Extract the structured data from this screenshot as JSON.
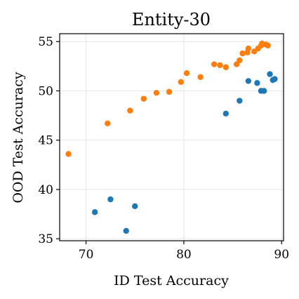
{
  "chart_data": {
    "type": "scatter",
    "title": "Entity-30",
    "xlabel": "ID Test Accuracy",
    "ylabel": "OOD Test Accuracy",
    "xlim": [
      67.3,
      90.2
    ],
    "ylim": [
      34.8,
      55.8
    ],
    "xticks": [
      70,
      80,
      90
    ],
    "yticks": [
      35,
      40,
      45,
      50,
      55
    ],
    "grid": true,
    "series": [
      {
        "color": "#1f77b4",
        "points": [
          {
            "x": 70.9,
            "y": 37.7
          },
          {
            "x": 72.5,
            "y": 39.0
          },
          {
            "x": 74.1,
            "y": 35.8
          },
          {
            "x": 75.0,
            "y": 38.3
          },
          {
            "x": 84.3,
            "y": 47.7
          },
          {
            "x": 85.7,
            "y": 49.0
          },
          {
            "x": 86.6,
            "y": 51.0
          },
          {
            "x": 87.5,
            "y": 50.8
          },
          {
            "x": 87.9,
            "y": 50.0
          },
          {
            "x": 88.2,
            "y": 50.0
          },
          {
            "x": 88.8,
            "y": 51.7
          },
          {
            "x": 89.1,
            "y": 51.1
          },
          {
            "x": 89.3,
            "y": 51.2
          }
        ]
      },
      {
        "color": "#ff7f0e",
        "points": [
          {
            "x": 68.2,
            "y": 43.6
          },
          {
            "x": 72.2,
            "y": 46.7
          },
          {
            "x": 74.5,
            "y": 48.0
          },
          {
            "x": 75.9,
            "y": 49.2
          },
          {
            "x": 77.2,
            "y": 49.8
          },
          {
            "x": 78.5,
            "y": 49.9
          },
          {
            "x": 79.7,
            "y": 50.9
          },
          {
            "x": 80.3,
            "y": 51.8
          },
          {
            "x": 81.7,
            "y": 51.4
          },
          {
            "x": 83.1,
            "y": 52.7
          },
          {
            "x": 83.7,
            "y": 52.6
          },
          {
            "x": 84.3,
            "y": 52.4
          },
          {
            "x": 85.4,
            "y": 52.7
          },
          {
            "x": 85.7,
            "y": 53.1
          },
          {
            "x": 86.0,
            "y": 53.8
          },
          {
            "x": 86.5,
            "y": 53.9
          },
          {
            "x": 86.6,
            "y": 54.3
          },
          {
            "x": 87.2,
            "y": 54.0
          },
          {
            "x": 87.6,
            "y": 54.3
          },
          {
            "x": 87.9,
            "y": 54.6
          },
          {
            "x": 88.0,
            "y": 54.8
          },
          {
            "x": 88.4,
            "y": 54.7
          },
          {
            "x": 88.6,
            "y": 54.6
          }
        ]
      }
    ]
  }
}
